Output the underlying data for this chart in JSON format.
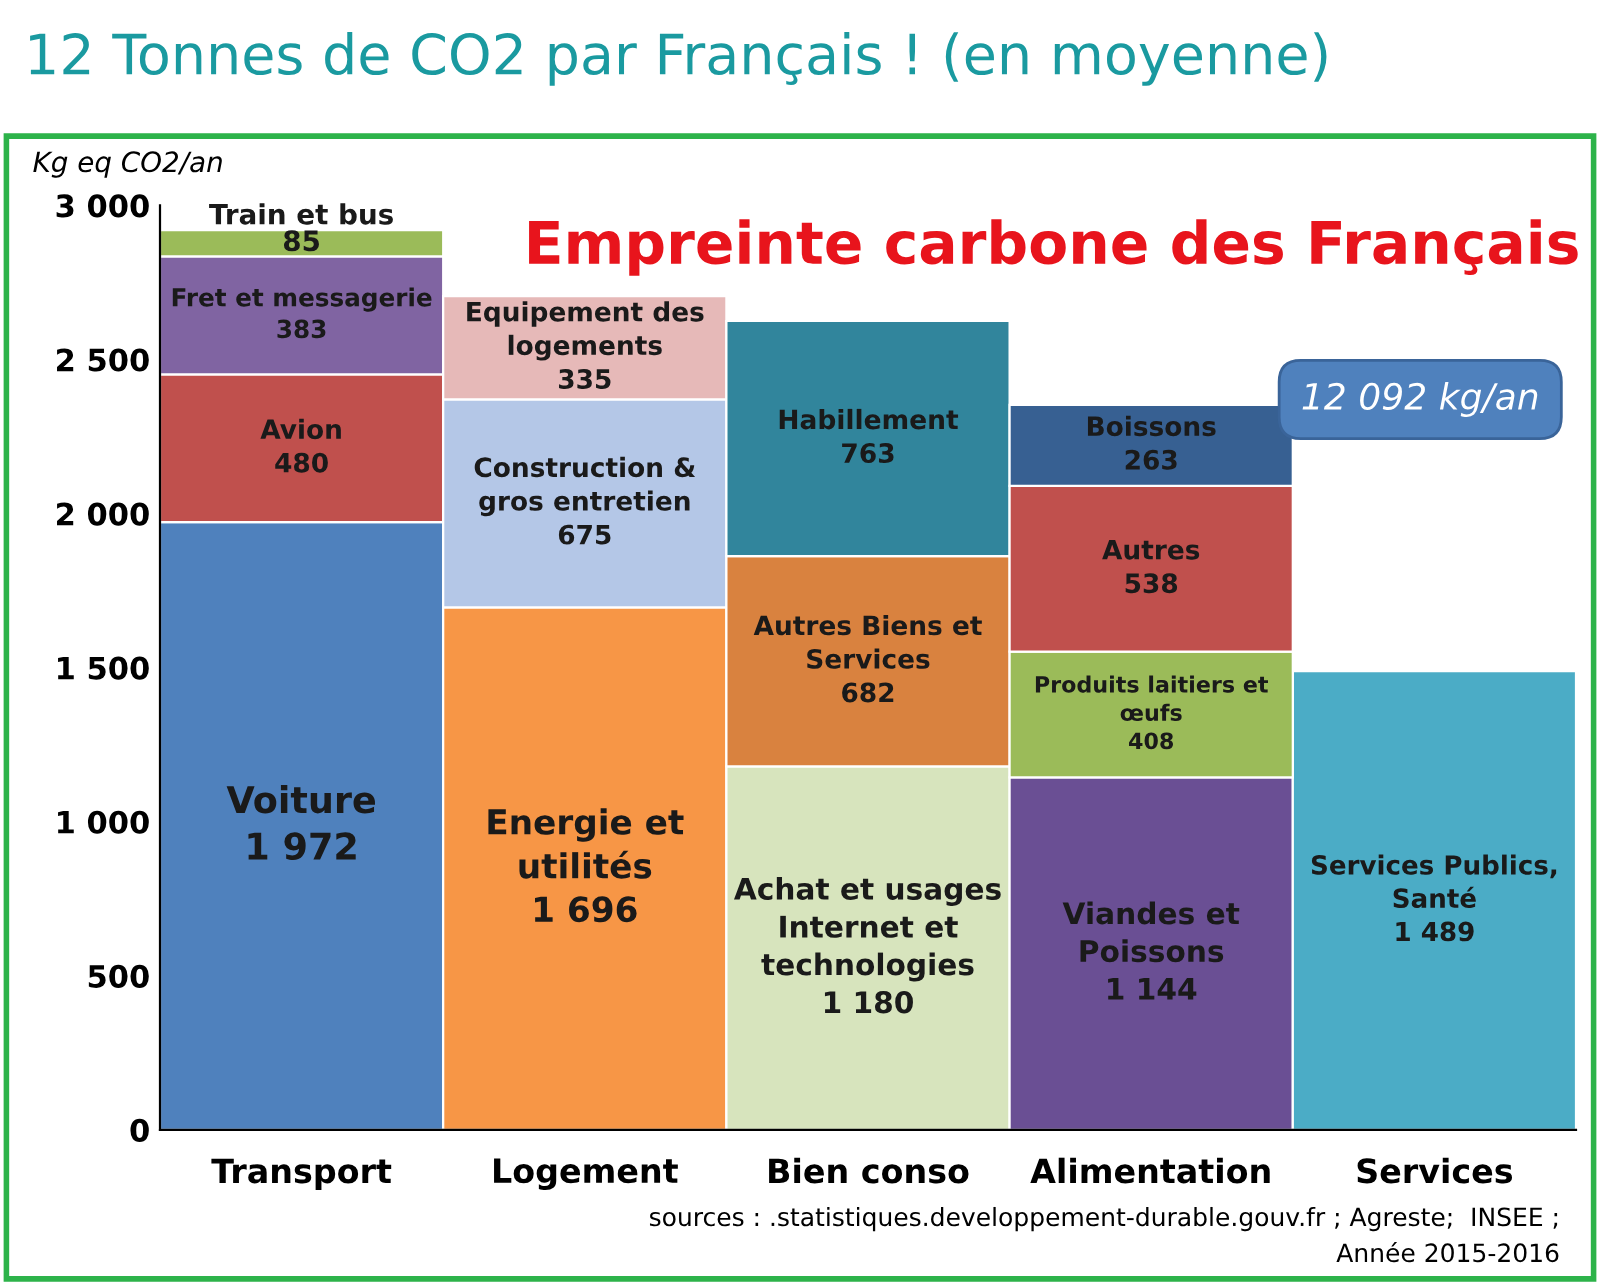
{
  "chart_data": {
    "type": "bar",
    "stacked": true,
    "title": "12 Tonnes de CO2 par Français ! (en moyenne)",
    "subtitle": "Empreinte carbone des Français",
    "ylabel": "Kg eq CO2/an",
    "categories": [
      "Transport",
      "Logement",
      "Bien conso",
      "Alimentation",
      "Services"
    ],
    "series": [
      {
        "colors": [
          "#4f81bd",
          "#f79646",
          "#d7e4bd",
          "#6a4f94",
          "#4bacc6"
        ],
        "values": [
          1972,
          1696,
          1180,
          1144,
          1489
        ],
        "value_labels": [
          "Voiture\n1 972",
          "Energie et\nutilités\n1 696",
          "Achat et usages\nInternet et\ntechnologies\n1 180",
          "Viandes et\nPoissons\n1 144",
          "Services Publics,\nSanté\n1 489"
        ]
      },
      {
        "colors": [
          "#c0504d",
          "#b4c7e7",
          "#d9823f",
          "#9bbb59",
          null
        ],
        "values": [
          480,
          675,
          682,
          408,
          null
        ],
        "value_labels": [
          "Avion\n480",
          "Construction &\ngros entretien\n675",
          "Autres Biens et\nServices\n682",
          "Produits laitiers et\nœufs\n408",
          null
        ]
      },
      {
        "colors": [
          "#8064a2",
          "#e6b9b8",
          "#31859c",
          "#c0504d",
          null
        ],
        "values": [
          383,
          335,
          763,
          538,
          null
        ],
        "value_labels": [
          "Fret et messagerie\n383",
          "Equipement des\nlogements\n335",
          "Habillement\n763",
          "Autres\n538",
          null
        ]
      },
      {
        "colors": [
          "#9bbb59",
          null,
          null,
          "#376092",
          null
        ],
        "values": [
          85,
          null,
          null,
          263,
          null
        ],
        "value_labels": [
          "Train et bus\n85",
          null,
          null,
          "Boissons\n263",
          null
        ]
      }
    ],
    "ylim": [
      0,
      3000
    ],
    "yticks": [
      {
        "value": 0,
        "label": "0"
      },
      {
        "value": 500,
        "label": "500"
      },
      {
        "value": 1000,
        "label": "1 000"
      },
      {
        "value": 1500,
        "label": "1 500"
      },
      {
        "value": 2000,
        "label": "2 000"
      },
      {
        "value": 2500,
        "label": "2 500"
      },
      {
        "value": 3000,
        "label": "3 000"
      }
    ],
    "grid": false,
    "legend": false,
    "annotations": [
      "12 092 kg/an",
      "sources : .statistiques.developpement-durable.gouv.fr ; Agreste;  INSEE ;",
      "Année 2015-2016"
    ]
  }
}
